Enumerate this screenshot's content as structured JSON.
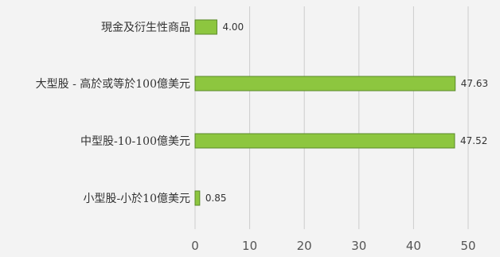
{
  "chart_data": {
    "type": "bar",
    "orientation": "horizontal",
    "categories": [
      "現金及衍生性商品",
      "大型股 - 高於或等於100億美元",
      "中型股-10-100億美元",
      "小型股-小於10億美元"
    ],
    "values": [
      4.0,
      47.63,
      47.52,
      0.85
    ],
    "value_labels": [
      "4.00",
      "47.63",
      "47.52",
      "0.85"
    ],
    "xlim": [
      0,
      50
    ],
    "xticks": [
      0,
      10,
      20,
      30,
      40,
      50
    ],
    "xtick_labels": [
      "0",
      "10",
      "20",
      "30",
      "40",
      "50"
    ],
    "grid": "vertical",
    "legend": "none",
    "bar_color": "#8dc63f",
    "bar_stroke": "#5a8a2a",
    "grid_color": "#cccccc",
    "background": "#f3f3f3",
    "title": "",
    "xlabel": "",
    "ylabel": ""
  }
}
